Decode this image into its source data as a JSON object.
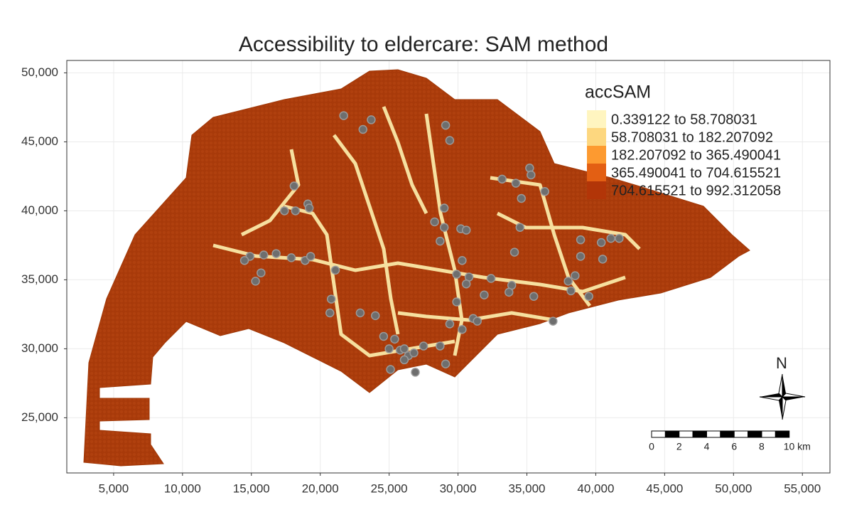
{
  "map": {
    "title": "Accessibility to eldercare: SAM method",
    "xlim": [
      1600,
      57000
    ],
    "ylim": [
      21000,
      50900
    ],
    "xticks": [
      {
        "value": 5000,
        "label": "5,000"
      },
      {
        "value": 10000,
        "label": "10,000"
      },
      {
        "value": 15000,
        "label": "15,000"
      },
      {
        "value": 20000,
        "label": "20,000"
      },
      {
        "value": 25000,
        "label": "25,000"
      },
      {
        "value": 30000,
        "label": "30,000"
      },
      {
        "value": 35000,
        "label": "35,000"
      },
      {
        "value": 40000,
        "label": "40,000"
      },
      {
        "value": 45000,
        "label": "45,000"
      },
      {
        "value": 50000,
        "label": "50,000"
      },
      {
        "value": 55000,
        "label": "55,000"
      }
    ],
    "yticks": [
      {
        "value": 25000,
        "label": "25,000"
      },
      {
        "value": 30000,
        "label": "30,000"
      },
      {
        "value": 35000,
        "label": "35,000"
      },
      {
        "value": 40000,
        "label": "40,000"
      },
      {
        "value": 45000,
        "label": "45,000"
      },
      {
        "value": 50000,
        "label": "50,000"
      }
    ],
    "grid": true,
    "legend": {
      "title": "accSAM",
      "classes": [
        {
          "label": "0.339122 to 58.708031",
          "color": "#fff5c0"
        },
        {
          "label": "58.708031 to 182.207092",
          "color": "#fdd77f"
        },
        {
          "label": "182.207092 to 365.490041",
          "color": "#fd9a30"
        },
        {
          "label": "365.490041 to 704.615521",
          "color": "#e35f13"
        },
        {
          "label": "704.615521 to 992.312058",
          "color": "#b23508"
        }
      ]
    },
    "points": {
      "color": "#6e6e6e",
      "x": [
        21700,
        23100,
        23700,
        29100,
        29400,
        18100,
        17400,
        18200,
        19100,
        19200,
        14900,
        14500,
        15300,
        15700,
        15900,
        16800,
        17900,
        18900,
        19300,
        21100,
        20800,
        20700,
        22900,
        24000,
        24600,
        25400,
        25000,
        25800,
        26100,
        26400,
        26800,
        27500,
        25100,
        26100,
        26900,
        28700,
        29100,
        29000,
        28300,
        29000,
        30200,
        30600,
        28700,
        30300,
        29900,
        30800,
        30600,
        29900,
        29400,
        30300,
        31100,
        31400,
        31900,
        32400,
        33200,
        34200,
        35200,
        35300,
        34600,
        34500,
        36300,
        34100,
        35500,
        33900,
        33700,
        36900,
        38000,
        38900,
        38900,
        40400,
        41100,
        41700,
        40500,
        38200,
        39500,
        38500
      ],
      "y": [
        46900,
        45900,
        46600,
        46200,
        45100,
        41800,
        40000,
        40000,
        40500,
        40200,
        36700,
        36400,
        34900,
        35500,
        36800,
        36900,
        36600,
        36400,
        36700,
        35700,
        33600,
        32600,
        32600,
        32400,
        30900,
        30700,
        30000,
        29900,
        30000,
        29500,
        29700,
        30200,
        28500,
        29200,
        28300,
        30200,
        28900,
        40200,
        39200,
        38800,
        38700,
        38600,
        37800,
        36400,
        35400,
        35200,
        34700,
        33400,
        31800,
        31400,
        32200,
        32000,
        33900,
        35100,
        42300,
        42000,
        43100,
        42600,
        40900,
        38800,
        41400,
        37000,
        33800,
        34600,
        34100,
        32000,
        34900,
        36700,
        37900,
        37700,
        38000,
        38000,
        36500,
        34200,
        33800,
        35300
      ]
    },
    "north": "N",
    "scale_bar": {
      "ticks": [
        {
          "value": 0,
          "label": "0"
        },
        {
          "value": 2,
          "label": "2"
        },
        {
          "value": 4,
          "label": "4"
        },
        {
          "value": 6,
          "label": "6"
        },
        {
          "value": 8,
          "label": "8"
        },
        {
          "value": 10,
          "label": "10 km"
        }
      ]
    }
  }
}
